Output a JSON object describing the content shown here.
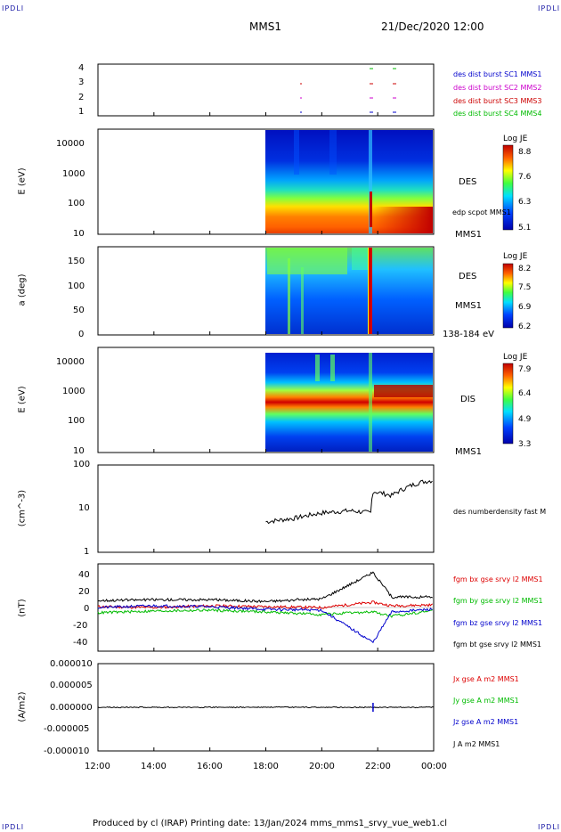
{
  "corner_label": "IPDLI",
  "header": {
    "mission": "MMS1",
    "date": "21/Dec/2020 12:00"
  },
  "footer": "Produced by cl (IRAP)   Printing date: 13/Jan/2024   mms_mms1_srvy_vue_web1.cl",
  "x_ticks": [
    "12:00",
    "14:00",
    "16:00",
    "18:00",
    "20:00",
    "22:00",
    "00:00"
  ],
  "panels": {
    "sc_position": {
      "y_ticks": [
        "4",
        "3",
        "2",
        "1"
      ],
      "legend": [
        {
          "text": "des dist burst SC1 MMS1",
          "color": "#0000cc"
        },
        {
          "text": "des dist burst SC2 MMS2",
          "color": "#cc00cc"
        },
        {
          "text": "des dist burst SC3 MMS3",
          "color": "#cc0000"
        },
        {
          "text": "des dist burst SC4 MMS4",
          "color": "#00bb00"
        }
      ]
    },
    "des_energy": {
      "ylabel": "E (eV)",
      "y_ticks": [
        "10000",
        "1000",
        "100",
        "10"
      ],
      "right_labels": [
        "DES",
        "edp scpot MMS1",
        "MMS1"
      ],
      "colorbar": {
        "title": "Log JE",
        "ticks": [
          "8.8",
          "7.6",
          "6.3",
          "5.1"
        ]
      }
    },
    "des_pitch": {
      "ylabel": "a (deg)",
      "y_ticks": [
        "150",
        "100",
        "50",
        "0"
      ],
      "right_labels": [
        "DES",
        "MMS1",
        "138-184 eV"
      ],
      "colorbar": {
        "title": "Log JE",
        "ticks": [
          "8.2",
          "7.5",
          "6.9",
          "6.2"
        ]
      }
    },
    "dis_energy": {
      "ylabel": "E (eV)",
      "y_ticks": [
        "10000",
        "1000",
        "100",
        "10"
      ],
      "right_labels": [
        "DIS",
        "MMS1"
      ],
      "colorbar": {
        "title": "Log JE",
        "ticks": [
          "7.9",
          "6.4",
          "4.9",
          "3.3"
        ]
      }
    },
    "density": {
      "ylabel": "(cm^-3)",
      "y_ticks": [
        "100",
        "10",
        "1"
      ],
      "right_labels": [
        "des numberdensity fast M"
      ]
    },
    "bfield": {
      "ylabel": "(nT)",
      "y_ticks": [
        "40",
        "20",
        "0",
        "-20",
        "-40"
      ],
      "legend": [
        {
          "text": "fgm bx gse srvy l2 MMS1",
          "color": "#dd0000"
        },
        {
          "text": "fgm by gse srvy l2 MMS1",
          "color": "#00bb00"
        },
        {
          "text": "fgm bz gse srvy l2 MMS1",
          "color": "#0000cc"
        },
        {
          "text": "fgm bt gse srvy l2 MMS1",
          "color": "#000000"
        }
      ]
    },
    "current": {
      "ylabel": "(A/m2)",
      "y_ticks": [
        "0.000010",
        "0.000005",
        "0.000000",
        "-0.000005",
        "-0.000010"
      ],
      "legend": [
        {
          "text": "Jx gse A m2 MMS1",
          "color": "#dd0000"
        },
        {
          "text": "Jy gse A m2 MMS1",
          "color": "#00bb00"
        },
        {
          "text": "Jz gse A m2 MMS1",
          "color": "#0000cc"
        },
        {
          "text": "J A m2 MMS1",
          "color": "#000000"
        }
      ]
    }
  },
  "chart_data": {
    "type": "line",
    "x_range": [
      "12:00",
      "00:00"
    ],
    "data_start": "18:00",
    "density": {
      "ylim": [
        1,
        100
      ],
      "log": true,
      "x": [
        "18:00",
        "19:00",
        "20:00",
        "21:00",
        "21:45",
        "21:50",
        "22:30",
        "23:30",
        "00:00"
      ],
      "values": [
        5,
        6,
        8,
        9,
        8,
        25,
        20,
        40,
        45
      ]
    },
    "bfield": {
      "ylim": [
        -50,
        50
      ],
      "x": [
        "12:00",
        "14:00",
        "16:00",
        "18:00",
        "20:00",
        "21:50",
        "22:30",
        "00:00"
      ],
      "series": [
        {
          "name": "fgm bx gse srvy l2 MMS1",
          "values": [
            1,
            0,
            2,
            1,
            0,
            6,
            2,
            3
          ]
        },
        {
          "name": "fgm by gse srvy l2 MMS1",
          "values": [
            -6,
            -4,
            -3,
            -5,
            -8,
            -5,
            -10,
            -3
          ]
        },
        {
          "name": "fgm bz gse srvy l2 MMS1",
          "values": [
            0,
            2,
            1,
            -2,
            -3,
            -40,
            -5,
            -2
          ]
        },
        {
          "name": "fgm bt gse srvy l2 MMS1",
          "values": [
            8,
            9,
            9,
            7,
            10,
            40,
            12,
            12
          ]
        }
      ]
    },
    "current": {
      "ylim": [
        -1e-05,
        1e-05
      ],
      "spike_x": "21:50"
    }
  }
}
